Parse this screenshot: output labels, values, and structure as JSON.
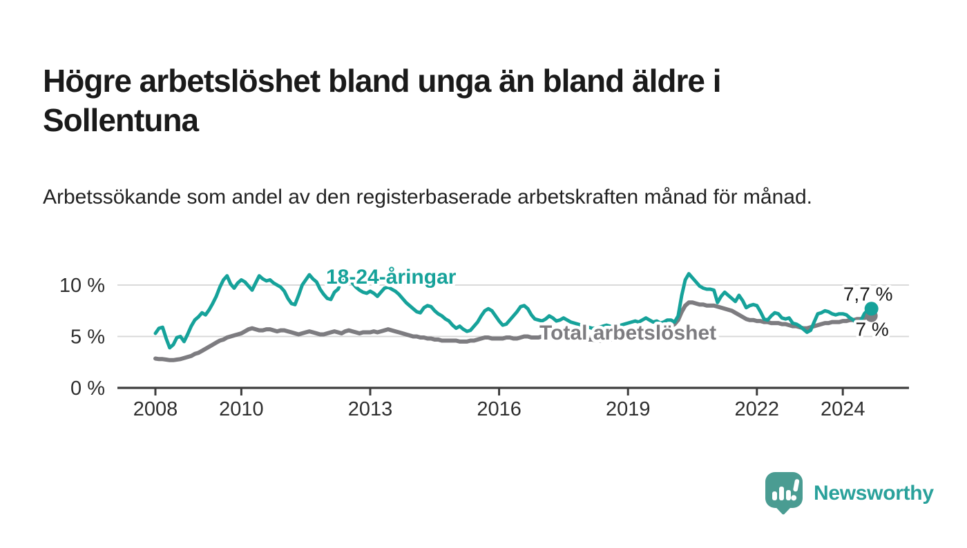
{
  "header": {
    "title": "Högre arbetslöshet bland unga än bland äldre i Sollentuna",
    "subtitle": "Arbetssökande som andel av den registerbaserade arbetskraften månad för månad."
  },
  "chart_data": {
    "type": "line",
    "x_unit": "month",
    "x_start": {
      "year": 2008,
      "month": 1
    },
    "x_end": {
      "year": 2024,
      "month": 9
    },
    "x_ticks": [
      2008,
      2010,
      2013,
      2016,
      2019,
      2022,
      2024
    ],
    "y_ticks": [
      {
        "value": 0,
        "label": "0 %"
      },
      {
        "value": 5,
        "label": "5 %"
      },
      {
        "value": 10,
        "label": "10 %"
      }
    ],
    "ylim": [
      0,
      12.8
    ],
    "grid": "horizontal-only",
    "legend": "inline-labels-on-lines",
    "series": [
      {
        "name": "Total arbetslöshet",
        "color": "#7d7c80",
        "end_label": "7 %",
        "end_label_position": "below",
        "values": [
          2.85,
          2.8,
          2.8,
          2.75,
          2.7,
          2.7,
          2.75,
          2.8,
          2.9,
          3.0,
          3.1,
          3.3,
          3.4,
          3.6,
          3.8,
          4.0,
          4.2,
          4.4,
          4.6,
          4.7,
          4.9,
          5.0,
          5.1,
          5.2,
          5.3,
          5.5,
          5.7,
          5.8,
          5.7,
          5.6,
          5.6,
          5.7,
          5.7,
          5.6,
          5.5,
          5.6,
          5.6,
          5.5,
          5.4,
          5.3,
          5.2,
          5.3,
          5.4,
          5.5,
          5.4,
          5.3,
          5.2,
          5.2,
          5.3,
          5.4,
          5.5,
          5.4,
          5.3,
          5.5,
          5.6,
          5.5,
          5.4,
          5.3,
          5.4,
          5.4,
          5.4,
          5.5,
          5.4,
          5.5,
          5.6,
          5.7,
          5.6,
          5.5,
          5.4,
          5.3,
          5.2,
          5.1,
          5.0,
          5.0,
          4.9,
          4.9,
          4.8,
          4.8,
          4.7,
          4.7,
          4.6,
          4.6,
          4.6,
          4.6,
          4.6,
          4.5,
          4.5,
          4.5,
          4.6,
          4.6,
          4.7,
          4.8,
          4.9,
          4.9,
          4.8,
          4.8,
          4.8,
          4.8,
          4.9,
          4.9,
          4.8,
          4.8,
          4.9,
          5.0,
          5.0,
          4.9,
          4.9,
          4.9,
          5.0,
          5.0,
          4.9,
          4.9,
          4.8,
          4.8,
          4.8,
          4.7,
          4.7,
          4.7,
          4.8,
          4.8,
          4.8,
          4.7,
          4.7,
          4.6,
          4.6,
          4.6,
          4.7,
          4.7,
          4.7,
          4.8,
          4.8,
          4.9,
          4.9,
          5.0,
          5.0,
          5.1,
          5.1,
          5.2,
          5.2,
          5.3,
          5.3,
          5.4,
          5.5,
          5.7,
          6.0,
          6.2,
          6.6,
          7.4,
          8.0,
          8.3,
          8.3,
          8.2,
          8.1,
          8.1,
          8.0,
          8.0,
          8.0,
          7.9,
          7.8,
          7.7,
          7.6,
          7.5,
          7.3,
          7.1,
          6.9,
          6.7,
          6.6,
          6.6,
          6.5,
          6.5,
          6.4,
          6.4,
          6.3,
          6.3,
          6.3,
          6.2,
          6.2,
          6.1,
          6.0,
          6.0,
          5.9,
          5.8,
          5.8,
          5.9,
          6.0,
          6.1,
          6.2,
          6.3,
          6.3,
          6.4,
          6.4,
          6.4,
          6.5,
          6.5,
          6.6,
          6.6,
          6.7,
          6.7,
          6.8,
          6.9,
          7.0
        ]
      },
      {
        "name": "18-24-åringar",
        "color": "#16a29a",
        "end_label": "7,7 %",
        "end_label_position": "above",
        "values": [
          5.3,
          5.8,
          5.9,
          4.8,
          3.9,
          4.2,
          4.9,
          5.0,
          4.5,
          5.2,
          6.0,
          6.6,
          6.9,
          7.3,
          7.1,
          7.6,
          8.2,
          8.9,
          9.8,
          10.5,
          10.9,
          10.1,
          9.7,
          10.2,
          10.5,
          10.3,
          9.9,
          9.5,
          10.2,
          10.9,
          10.6,
          10.4,
          10.5,
          10.2,
          10.0,
          9.8,
          9.4,
          8.7,
          8.2,
          8.1,
          9.0,
          10.0,
          10.5,
          11.0,
          10.6,
          10.3,
          9.6,
          9.1,
          8.7,
          8.6,
          9.3,
          9.6,
          10.4,
          11.1,
          10.7,
          10.2,
          9.8,
          9.5,
          9.3,
          9.2,
          9.4,
          9.2,
          8.9,
          9.3,
          9.7,
          9.8,
          9.6,
          9.4,
          9.1,
          8.7,
          8.3,
          8.0,
          7.7,
          7.4,
          7.3,
          7.8,
          8.0,
          7.9,
          7.5,
          7.2,
          7.0,
          6.7,
          6.5,
          6.1,
          5.8,
          6.0,
          5.7,
          5.5,
          5.6,
          6.0,
          6.4,
          7.0,
          7.5,
          7.7,
          7.5,
          7.0,
          6.5,
          6.1,
          6.2,
          6.6,
          7.0,
          7.4,
          7.9,
          8.0,
          7.7,
          7.1,
          6.7,
          6.6,
          6.5,
          6.7,
          7.0,
          6.8,
          6.5,
          6.6,
          6.8,
          6.6,
          6.4,
          6.3,
          6.2,
          6.1,
          6.0,
          5.9,
          5.8,
          5.8,
          5.9,
          6.0,
          6.1,
          6.0,
          5.9,
          6.0,
          6.1,
          6.2,
          6.3,
          6.4,
          6.5,
          6.4,
          6.6,
          6.8,
          6.6,
          6.4,
          6.5,
          6.3,
          6.4,
          6.6,
          6.6,
          6.4,
          7.0,
          9.0,
          10.5,
          11.1,
          10.7,
          10.3,
          9.9,
          9.7,
          9.6,
          9.6,
          9.5,
          8.3,
          8.9,
          9.3,
          9.0,
          8.7,
          8.4,
          9.0,
          8.5,
          7.8,
          8.0,
          8.1,
          8.0,
          7.4,
          6.7,
          6.6,
          7.0,
          7.3,
          7.2,
          6.8,
          6.7,
          6.8,
          6.3,
          6.2,
          6.0,
          5.7,
          5.4,
          5.6,
          6.4,
          7.2,
          7.3,
          7.5,
          7.4,
          7.2,
          7.1,
          7.2,
          7.2,
          7.1,
          6.8,
          6.6,
          6.2,
          6.5,
          7.2,
          7.6,
          7.7
        ]
      }
    ]
  },
  "logo": {
    "name": "Newsworthy",
    "icon": "newsworthy-speech-bubble-bar-chart-icon",
    "icon_color": "#4a9c92",
    "icon_bar_color": "#ffffff",
    "wordmark_color": "#2aa19b"
  },
  "colors": {
    "background": "#ffffff",
    "title_text": "#1a1a1a",
    "subtitle_text": "#222222",
    "axis": "#3d3d3d",
    "gridline": "#d9d9d9",
    "tick_label": "#2e2e2e",
    "annotation_text": "#1a1a1a"
  }
}
